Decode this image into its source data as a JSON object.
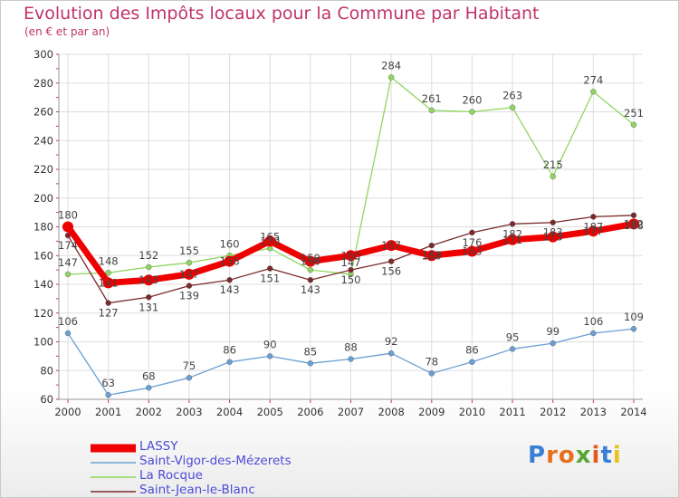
{
  "header": {
    "title": "Evolution des Impôts locaux pour la Commune par Habitant",
    "subtitle": "(en € et par an)"
  },
  "logo": {
    "text": "Proxiti",
    "colors": [
      "#3a7fd5",
      "#e8701c",
      "#e8701c",
      "#57a832",
      "#e85a1c",
      "#3a7fd5",
      "#e8c21c"
    ]
  },
  "chart_data": {
    "type": "line",
    "title": "Evolution des Impôts locaux pour la Commune par Habitant",
    "subtitle": "(en € et par an)",
    "x": [
      "2000",
      "2001",
      "2002",
      "2003",
      "2004",
      "2005",
      "2006",
      "2007",
      "2008",
      "2009",
      "2010",
      "2011",
      "2012",
      "2013",
      "2014"
    ],
    "ylim": [
      60,
      300
    ],
    "yticks": [
      60,
      80,
      100,
      120,
      140,
      160,
      180,
      200,
      220,
      240,
      260,
      280,
      300
    ],
    "grid": true,
    "legend_position": "bottom-left",
    "series": [
      {
        "name": "LASSY",
        "color": "#ee0000",
        "values": [
          180,
          141,
          143,
          147,
          156,
          170,
          156,
          160,
          167,
          160,
          163,
          171,
          173,
          177,
          182
        ]
      },
      {
        "name": "Saint-Vigor-des-Mézerets",
        "color": "#6a9fd4",
        "values": [
          106,
          63,
          68,
          75,
          86,
          90,
          85,
          88,
          92,
          78,
          86,
          95,
          99,
          106,
          109
        ]
      },
      {
        "name": "La Rocque",
        "color": "#8fd65f",
        "values": [
          147,
          148,
          152,
          155,
          160,
          165,
          150,
          147,
          284,
          261,
          260,
          263,
          215,
          274,
          251
        ]
      },
      {
        "name": "Saint-Jean-le-Blanc",
        "color": "#7a2a2a",
        "values": [
          174,
          127,
          131,
          139,
          143,
          151,
          143,
          150,
          156,
          167,
          176,
          182,
          183,
          187,
          188
        ]
      }
    ]
  }
}
